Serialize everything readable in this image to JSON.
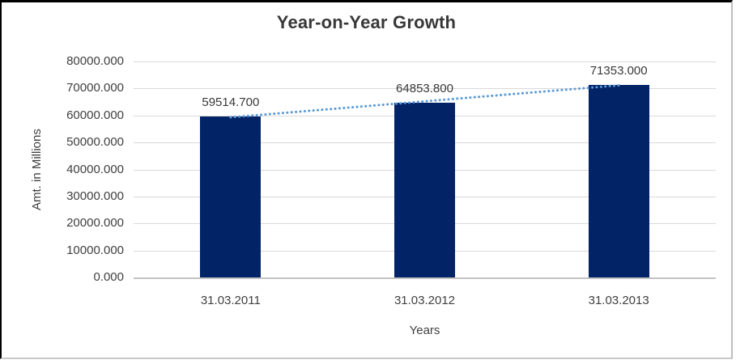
{
  "chart_data": {
    "type": "bar",
    "title": "Year-on-Year Growth",
    "categories": [
      "31.03.2011",
      "31.03.2012",
      "31.03.2013"
    ],
    "values": [
      59514.7,
      64853.8,
      71353.0
    ],
    "value_labels": [
      "59514.700",
      "64853.800",
      "71353.000"
    ],
    "xlabel": "Years",
    "ylabel": "Amt. in Millions",
    "ylim": [
      0,
      80000
    ],
    "ytick_step": 10000,
    "ytick_labels": [
      "0.000",
      "10000.000",
      "20000.000",
      "30000.000",
      "40000.000",
      "50000.000",
      "60000.000",
      "70000.000",
      "80000.000"
    ],
    "grid": true,
    "legend": "none",
    "bar_color": "#032367",
    "trendline": {
      "type": "linear",
      "style": "dotted",
      "color": "#5b9bd5"
    }
  }
}
